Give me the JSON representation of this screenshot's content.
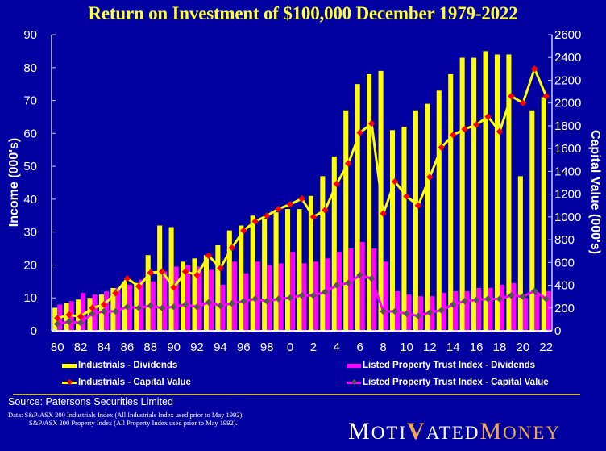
{
  "chart_data": {
    "type": "bar",
    "title": "Return on Investment of  $100,000 December 1979-2022",
    "xlabel": "",
    "ylabel": "Income (000's)",
    "y2label": "Capital Value (000's)",
    "ylim": [
      0,
      90
    ],
    "y2lim": [
      0,
      2600
    ],
    "yticks": [
      "0",
      "10",
      "20",
      "30",
      "40",
      "50",
      "60",
      "70",
      "80",
      "90"
    ],
    "y2ticks": [
      "0",
      "200",
      "400",
      "600",
      "800",
      "1000",
      "1200",
      "1400",
      "1600",
      "1800",
      "2000",
      "2200",
      "2400",
      "2600"
    ],
    "xtick_labels": [
      "80",
      "82",
      "84",
      "86",
      "88",
      "90",
      "92",
      "94",
      "96",
      "98",
      "0",
      "2",
      "4",
      "6",
      "8",
      "10",
      "12",
      "14",
      "16",
      "18",
      "20",
      "22"
    ],
    "categories": [
      "80",
      "81",
      "82",
      "83",
      "84",
      "85",
      "86",
      "87",
      "88",
      "89",
      "90",
      "91",
      "92",
      "93",
      "94",
      "95",
      "96",
      "97",
      "98",
      "99",
      "0",
      "1",
      "2",
      "3",
      "4",
      "5",
      "6",
      "7",
      "8",
      "9",
      "10",
      "11",
      "12",
      "13",
      "14",
      "15",
      "16",
      "17",
      "18",
      "19",
      "20",
      "21",
      "22"
    ],
    "grid": false,
    "series": [
      {
        "name": "Industrials - Dividends",
        "type": "bar",
        "axis": "left",
        "color": "#ffff00",
        "values": [
          7,
          8.5,
          9.5,
          10,
          11,
          13,
          15,
          14.5,
          23,
          32,
          31.5,
          21,
          22,
          23,
          26,
          30.5,
          32,
          35,
          34,
          36,
          37,
          37,
          41,
          47,
          53,
          67,
          75,
          78,
          79,
          61,
          62,
          67,
          69,
          73,
          78,
          83,
          83,
          85,
          84,
          84,
          47,
          67,
          71
        ]
      },
      {
        "name": "Listed Property Trust Index - Dividends",
        "type": "bar",
        "axis": "left",
        "color": "#ff00ff",
        "values": [
          8,
          9,
          11.5,
          11,
          12,
          13,
          14,
          15.5,
          15,
          18,
          19.5,
          20,
          19.5,
          18.5,
          14,
          21,
          17.5,
          21,
          20,
          20.5,
          24,
          20.5,
          21,
          22,
          24,
          25,
          27,
          25,
          21,
          12,
          11,
          10.5,
          10.5,
          11.5,
          12,
          12,
          13,
          13,
          14,
          14.5,
          10,
          11,
          12
        ]
      },
      {
        "name": "Industrials - Capital Value",
        "type": "line",
        "axis": "right",
        "color": "#ffff00",
        "marker": "#ff0000",
        "values": [
          110,
          140,
          125,
          200,
          230,
          330,
          460,
          390,
          510,
          520,
          380,
          520,
          490,
          660,
          550,
          730,
          880,
          960,
          1010,
          1070,
          1110,
          1160,
          1000,
          1060,
          1290,
          1470,
          1740,
          1820,
          1030,
          1310,
          1180,
          1100,
          1350,
          1610,
          1720,
          1770,
          1810,
          1880,
          1750,
          2060,
          2000,
          2300,
          2060
        ]
      },
      {
        "name": "Listed Property Trust Index - Capital Value",
        "type": "line",
        "axis": "right",
        "color": "#ff00ff",
        "marker": "#555555",
        "values": [
          60,
          80,
          70,
          150,
          170,
          170,
          210,
          200,
          220,
          200,
          210,
          230,
          210,
          250,
          220,
          240,
          260,
          280,
          260,
          280,
          290,
          310,
          310,
          340,
          400,
          420,
          490,
          460,
          170,
          170,
          150,
          130,
          160,
          180,
          230,
          260,
          270,
          280,
          280,
          310,
          300,
          350,
          280
        ]
      }
    ],
    "legend_position": "bottom"
  },
  "legend": [
    {
      "label": "Industrials - Dividends"
    },
    {
      "label": "Listed Property Trust Index - Dividends"
    },
    {
      "label": "Industrials - Capital Value"
    },
    {
      "label": "Listed Property Trust Index - Capital Value"
    }
  ],
  "footer": {
    "source": "Source:  Patersons  Securities  Limited",
    "note1": "Data:  S&P/ASX  200 Industrials Index  (All Industrials Index  used prior to May  1992).",
    "note2": "S&P/ASX  200 Property Index  (All Property Index used prior to May  1992)."
  },
  "logo": {
    "part1_big": "M",
    "part1_small": "OTI",
    "check": "V",
    "part2_small": "ATED",
    "part3_big": "M",
    "part3_small": "ONEY"
  }
}
